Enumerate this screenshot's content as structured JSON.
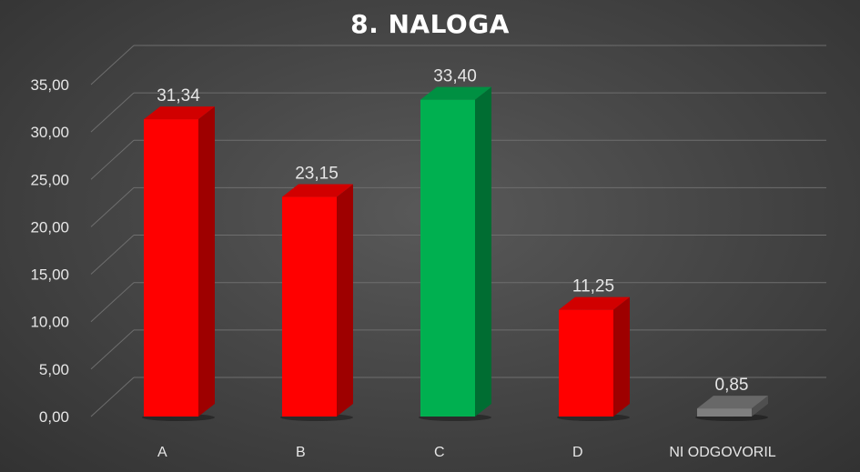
{
  "chart_data": {
    "type": "bar",
    "title": "8. NALOGA",
    "categories": [
      "A",
      "B",
      "C",
      "D",
      "NI ODGOVORIL"
    ],
    "values": [
      31.34,
      23.15,
      33.4,
      11.25,
      0.85
    ],
    "value_labels": [
      "31,34",
      "23,15",
      "33,40",
      "11,25",
      "0,85"
    ],
    "bar_colors": [
      "#ff0000",
      "#ff0000",
      "#00b050",
      "#ff0000",
      "#7f7f7f"
    ],
    "yticks": [
      "0,00",
      "5,00",
      "10,00",
      "15,00",
      "20,00",
      "25,00",
      "30,00",
      "35,00"
    ],
    "ylim": [
      0,
      35
    ],
    "style": "3d-column",
    "grid": true,
    "legend": "none",
    "xlabel": "",
    "ylabel": ""
  }
}
